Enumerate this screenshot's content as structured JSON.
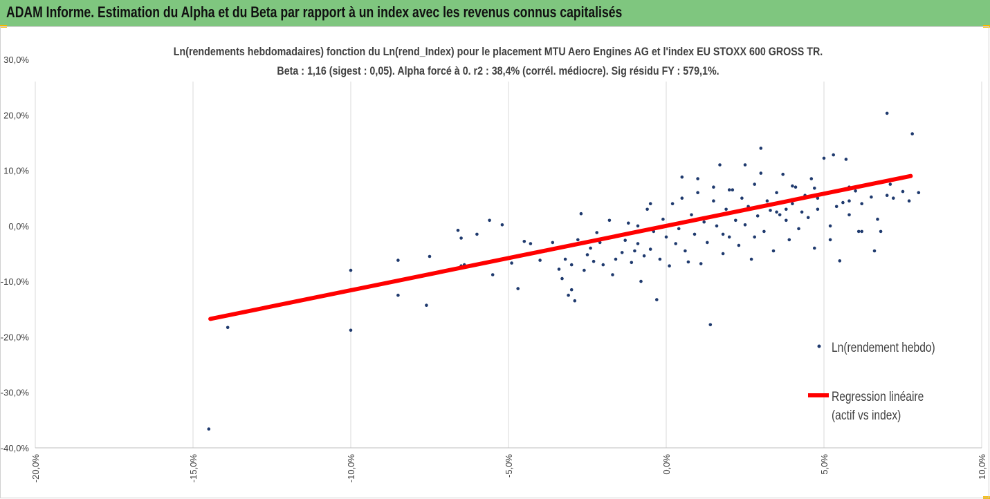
{
  "header": {
    "title": "ADAM Informe. Estimation du Alpha et du Beta par rapport à un index avec les revenus connus capitalisés",
    "background": "#7fc67f"
  },
  "chart_data": {
    "type": "scatter",
    "title": "Ln(rendements hebdomadaires) fonction du Ln(rend_Index) pour le placement MTU Aero Engines AG et l'index EU STOXX 600 GROSS TR.",
    "subtitle": "Beta : 1,16 (sigest : 0,05). Alpha forcé à 0. r2 : 38,4% (corrél. médiocre). Sig résidu FY : 579,1%.",
    "xlabel": "",
    "ylabel": "",
    "xlim": [
      -0.2,
      0.1
    ],
    "ylim": [
      -0.4,
      0.3
    ],
    "x_ticks": [
      -0.2,
      -0.15,
      -0.1,
      -0.05,
      0.0,
      0.05,
      0.1
    ],
    "x_tick_labels": [
      "-20,0%",
      "-15,0%",
      "-10,0%",
      "-5,0%",
      "0,0%",
      "5,0%",
      "10,0%"
    ],
    "y_ticks": [
      0.3,
      0.2,
      0.1,
      0.0,
      -0.1,
      -0.2,
      -0.3,
      -0.4
    ],
    "y_tick_labels": [
      "30,0%",
      "20,0%",
      "10,0%",
      "0,0%",
      "-10,0%",
      "-20,0%",
      "-30,0%",
      "-40,0%"
    ],
    "grid": "vertical",
    "legend_position": "right",
    "series": [
      {
        "name": "Ln(rendement hebdo)",
        "kind": "scatter",
        "color": "#1f3a6e",
        "points": [
          [
            -0.145,
            -0.366
          ],
          [
            -0.139,
            -0.183
          ],
          [
            -0.1,
            -0.188
          ],
          [
            -0.1,
            -0.08
          ],
          [
            -0.085,
            -0.062
          ],
          [
            -0.085,
            -0.125
          ],
          [
            -0.076,
            -0.143
          ],
          [
            -0.075,
            -0.055
          ],
          [
            -0.066,
            -0.008
          ],
          [
            -0.065,
            -0.022
          ],
          [
            -0.065,
            -0.072
          ],
          [
            -0.064,
            -0.07
          ],
          [
            -0.06,
            -0.015
          ],
          [
            -0.056,
            0.01
          ],
          [
            -0.055,
            -0.088
          ],
          [
            -0.052,
            0.002
          ],
          [
            -0.049,
            -0.067
          ],
          [
            -0.047,
            -0.113
          ],
          [
            -0.045,
            -0.028
          ],
          [
            -0.043,
            -0.032
          ],
          [
            -0.04,
            -0.062
          ],
          [
            -0.038,
            -0.045
          ],
          [
            -0.036,
            -0.03
          ],
          [
            -0.034,
            -0.078
          ],
          [
            -0.033,
            -0.095
          ],
          [
            -0.032,
            -0.06
          ],
          [
            -0.031,
            -0.125
          ],
          [
            -0.03,
            -0.115
          ],
          [
            -0.03,
            -0.07
          ],
          [
            -0.029,
            -0.135
          ],
          [
            -0.028,
            -0.025
          ],
          [
            -0.027,
            0.022
          ],
          [
            -0.026,
            -0.08
          ],
          [
            -0.025,
            -0.052
          ],
          [
            -0.024,
            -0.04
          ],
          [
            -0.023,
            -0.064
          ],
          [
            -0.022,
            -0.012
          ],
          [
            -0.021,
            -0.03
          ],
          [
            -0.02,
            -0.07
          ],
          [
            -0.018,
            0.01
          ],
          [
            -0.017,
            -0.088
          ],
          [
            -0.016,
            -0.06
          ],
          [
            -0.015,
            -0.018
          ],
          [
            -0.014,
            -0.048
          ],
          [
            -0.013,
            -0.026
          ],
          [
            -0.012,
            0.005
          ],
          [
            -0.011,
            -0.066
          ],
          [
            -0.01,
            -0.045
          ],
          [
            -0.009,
            0.0
          ],
          [
            -0.009,
            -0.032
          ],
          [
            -0.008,
            -0.1
          ],
          [
            -0.007,
            -0.054
          ],
          [
            -0.006,
            0.03
          ],
          [
            -0.005,
            -0.042
          ],
          [
            -0.004,
            -0.01
          ],
          [
            -0.003,
            -0.133
          ],
          [
            -0.002,
            -0.06
          ],
          [
            -0.001,
            0.012
          ],
          [
            0.0,
            -0.02
          ],
          [
            0.001,
            -0.072
          ],
          [
            0.002,
            0.04
          ],
          [
            0.003,
            -0.032
          ],
          [
            0.004,
            -0.005
          ],
          [
            0.005,
            0.088
          ],
          [
            0.006,
            -0.045
          ],
          [
            0.007,
            -0.065
          ],
          [
            0.008,
            0.02
          ],
          [
            0.009,
            -0.015
          ],
          [
            0.01,
            0.085
          ],
          [
            0.011,
            -0.068
          ],
          [
            0.012,
            0.007
          ],
          [
            0.013,
            -0.03
          ],
          [
            0.014,
            -0.178
          ],
          [
            0.015,
            0.045
          ],
          [
            0.016,
            0.0
          ],
          [
            0.017,
            0.11
          ],
          [
            0.018,
            -0.05
          ],
          [
            0.019,
            0.03
          ],
          [
            0.02,
            -0.02
          ],
          [
            0.021,
            0.065
          ],
          [
            0.022,
            0.01
          ],
          [
            0.023,
            -0.035
          ],
          [
            0.024,
            0.05
          ],
          [
            0.025,
            0.002
          ],
          [
            0.026,
            0.035
          ],
          [
            0.027,
            -0.06
          ],
          [
            0.028,
            0.075
          ],
          [
            0.029,
            0.018
          ],
          [
            0.03,
            0.14
          ],
          [
            0.031,
            -0.01
          ],
          [
            0.032,
            0.045
          ],
          [
            0.033,
            0.028
          ],
          [
            0.034,
            -0.045
          ],
          [
            0.035,
            0.06
          ],
          [
            0.036,
            0.02
          ],
          [
            0.037,
            0.093
          ],
          [
            0.038,
            0.01
          ],
          [
            0.039,
            -0.025
          ],
          [
            0.04,
            0.04
          ],
          [
            0.041,
            0.07
          ],
          [
            0.042,
            -0.005
          ],
          [
            0.043,
            0.025
          ],
          [
            0.044,
            0.055
          ],
          [
            0.045,
            0.015
          ],
          [
            0.046,
            0.085
          ],
          [
            0.047,
            -0.04
          ],
          [
            0.048,
            0.03
          ],
          [
            0.05,
            0.122
          ],
          [
            0.051,
            0.06
          ],
          [
            0.052,
            0.0
          ],
          [
            0.053,
            0.128
          ],
          [
            0.054,
            0.035
          ],
          [
            0.055,
            -0.063
          ],
          [
            0.056,
            0.042
          ],
          [
            0.057,
            0.12
          ],
          [
            0.058,
            0.02
          ],
          [
            0.06,
            0.063
          ],
          [
            0.061,
            -0.01
          ],
          [
            0.062,
            0.04
          ],
          [
            0.065,
            0.052
          ],
          [
            0.066,
            -0.045
          ],
          [
            0.067,
            0.012
          ],
          [
            0.068,
            -0.01
          ],
          [
            0.07,
            0.055
          ],
          [
            0.071,
            0.075
          ],
          [
            0.072,
            0.05
          ],
          [
            0.075,
            0.062
          ],
          [
            0.077,
            0.045
          ],
          [
            0.08,
            0.06
          ],
          [
            0.07,
            0.203
          ],
          [
            0.078,
            0.166
          ],
          [
            0.058,
            0.045
          ],
          [
            0.047,
            0.068
          ],
          [
            0.04,
            0.072
          ],
          [
            0.035,
            0.025
          ],
          [
            0.03,
            0.095
          ],
          [
            0.025,
            0.11
          ],
          [
            0.02,
            0.065
          ],
          [
            0.015,
            0.07
          ],
          [
            0.01,
            0.06
          ],
          [
            0.005,
            0.05
          ],
          [
            -0.005,
            0.04
          ],
          [
            0.018,
            -0.015
          ],
          [
            0.028,
            -0.02
          ],
          [
            0.038,
            0.03
          ],
          [
            0.048,
            0.05
          ],
          [
            0.058,
            0.07
          ],
          [
            0.052,
            -0.025
          ],
          [
            0.062,
            -0.01
          ]
        ]
      },
      {
        "name": "Regression linéaire (actif vs index)",
        "kind": "line",
        "color": "#ff0000",
        "points": [
          [
            -0.1445,
            -0.1676
          ],
          [
            0.0775,
            0.0899
          ]
        ]
      }
    ],
    "legend": [
      {
        "label": "Ln(rendement hebdo)",
        "kind": "marker"
      },
      {
        "label_line1": "Regression linéaire",
        "label_line2": "(actif vs index)",
        "kind": "line"
      }
    ]
  }
}
